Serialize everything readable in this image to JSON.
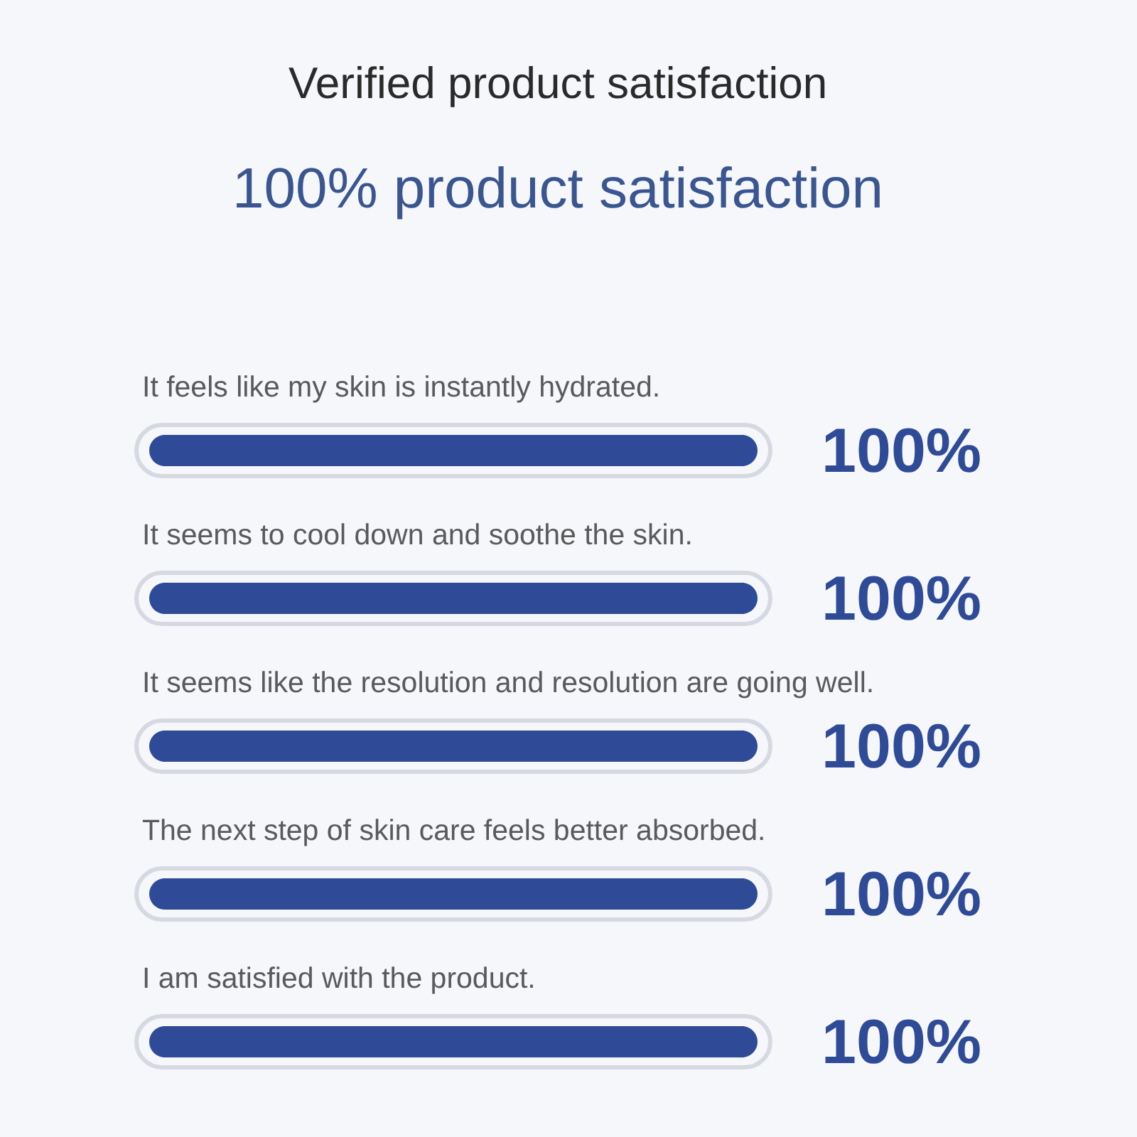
{
  "chart_data": {
    "type": "bar",
    "orientation": "horizontal",
    "title": "Verified product satisfaction",
    "subtitle": "100% product satisfaction",
    "categories": [
      "It feels like my skin is instantly hydrated.",
      "It seems to cool down and soothe the skin.",
      "It seems like the resolution and resolution are going well.",
      "The next step of skin care feels better absorbed.",
      "I am satisfied with the product."
    ],
    "values": [
      100,
      100,
      100,
      100,
      100
    ],
    "value_labels": [
      "100%",
      "100%",
      "100%",
      "100%",
      "100%"
    ],
    "color": "#2f4b98",
    "tick_labels": false
  }
}
